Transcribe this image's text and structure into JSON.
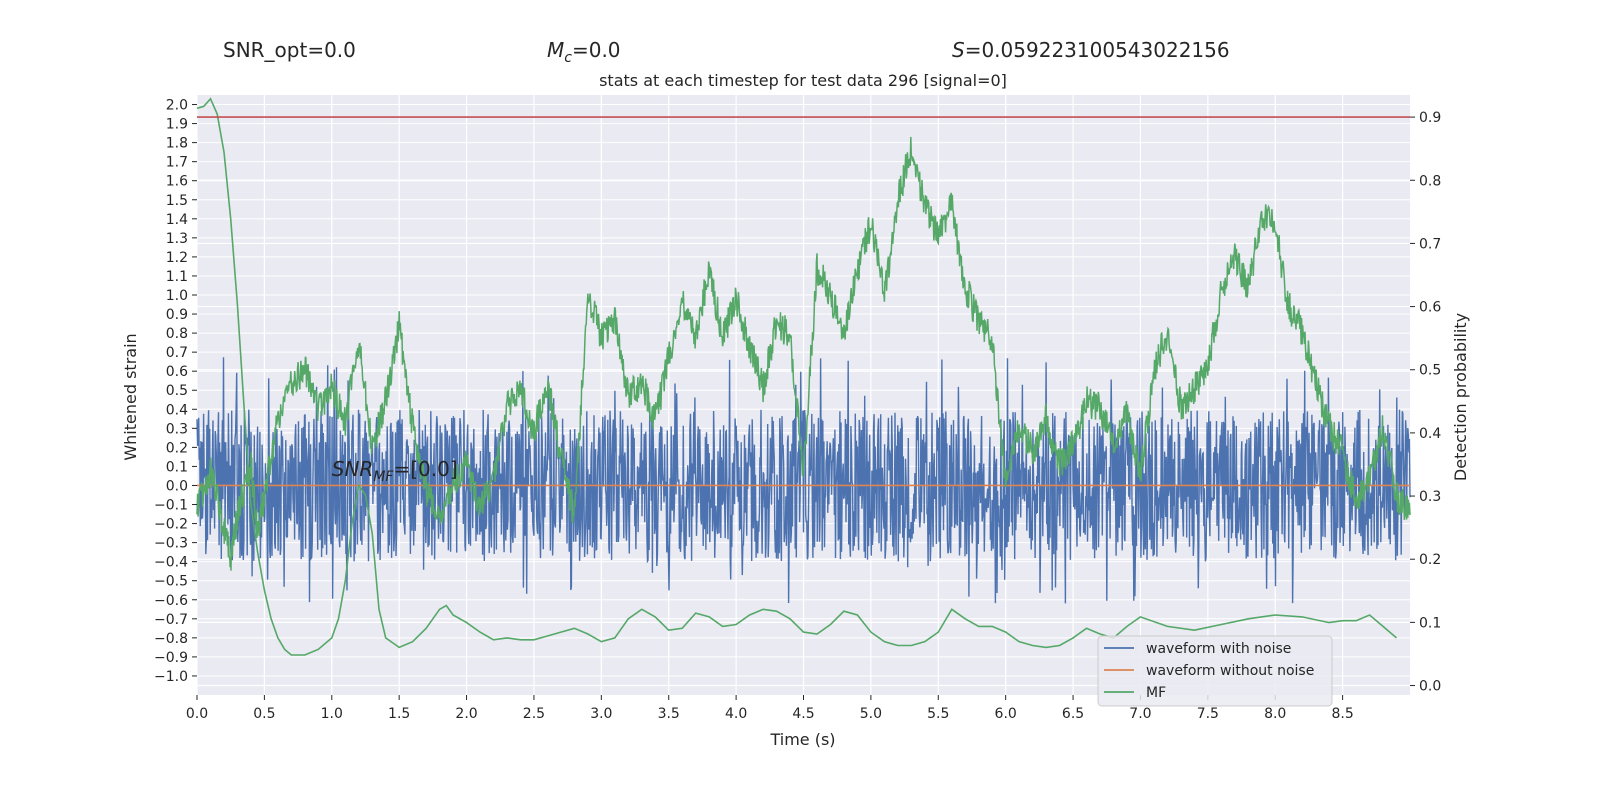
{
  "header": {
    "snr_opt": "SNR_opt=0.0",
    "mc_symbol": "M",
    "mc_sub": "c",
    "mc_value": "=0.0",
    "s_symbol": "S",
    "s_value": "=0.059223100543022156"
  },
  "chart_data": {
    "type": "line",
    "title": "stats at each timestep for test data 296 [signal=0]",
    "xlabel": "Time (s)",
    "ylabel_left": "Whitened strain",
    "ylabel_right": "Detection probability",
    "xlim": [
      0.0,
      9.0
    ],
    "ylim_left": [
      -1.1,
      2.05
    ],
    "ylim_right": [
      -0.015,
      0.935
    ],
    "x_ticks": [
      "0.0",
      "0.5",
      "1.0",
      "1.5",
      "2.0",
      "2.5",
      "3.0",
      "3.5",
      "4.0",
      "4.5",
      "5.0",
      "5.5",
      "6.0",
      "6.5",
      "7.0",
      "7.5",
      "8.0",
      "8.5"
    ],
    "y_left_ticks": [
      "−1.0",
      "−0.9",
      "−0.8",
      "−0.7",
      "−0.6",
      "−0.5",
      "−0.4",
      "−0.3",
      "−0.2",
      "−0.1",
      "0.0",
      "0.1",
      "0.2",
      "0.3",
      "0.4",
      "0.5",
      "0.6",
      "0.7",
      "0.8",
      "0.9",
      "1.0",
      "1.1",
      "1.2",
      "1.3",
      "1.4",
      "1.5",
      "1.6",
      "1.7",
      "1.8",
      "1.9",
      "2.0"
    ],
    "y_right_ticks": [
      "0.0",
      "0.1",
      "0.2",
      "0.3",
      "0.4",
      "0.5",
      "0.6",
      "0.7",
      "0.8",
      "0.9"
    ],
    "threshold": 0.9,
    "threshold_color": "#c44e52",
    "snr_mf_annotation": {
      "symbol": "SNR",
      "sub": "MF",
      "text": "=[0.0]",
      "x": 1.0,
      "y": 0.05
    },
    "grid": true,
    "background": "#eaeaf2",
    "legend_position": "lower-right",
    "series": [
      {
        "name": "waveform with noise",
        "color": "#4c72b0",
        "axis": "left",
        "description_range": [
          -0.6,
          0.65
        ]
      },
      {
        "name": "waveform without noise",
        "color": "#dd8452",
        "axis": "left",
        "x": [
          0.0,
          9.0
        ],
        "values": [
          0.0,
          0.0
        ]
      },
      {
        "name": "MF",
        "color": "#55a868",
        "axis": "left",
        "x": [
          0.0,
          0.05,
          0.1,
          0.15,
          0.2,
          0.25,
          0.3,
          0.35,
          0.4,
          0.45,
          0.5,
          0.55,
          0.6,
          0.65,
          0.7,
          0.8,
          0.9,
          1.0,
          1.05,
          1.1,
          1.15,
          1.2,
          1.25,
          1.3,
          1.35,
          1.4,
          1.5,
          1.6,
          1.7,
          1.8,
          1.85,
          1.9,
          2.0,
          2.1,
          2.2,
          2.3,
          2.4,
          2.5,
          2.6,
          2.7,
          2.8,
          2.9,
          3.0,
          3.1,
          3.2,
          3.3,
          3.4,
          3.5,
          3.6,
          3.7,
          3.8,
          3.9,
          4.0,
          4.1,
          4.2,
          4.3,
          4.4,
          4.5,
          4.6,
          4.7,
          4.8,
          4.9,
          5.0,
          5.1,
          5.2,
          5.3,
          5.4,
          5.5,
          5.6,
          5.7,
          5.8,
          5.9,
          6.0,
          6.1,
          6.2,
          6.3,
          6.4,
          6.5,
          6.6,
          6.7,
          6.8,
          6.9,
          7.0,
          7.2,
          7.4,
          7.6,
          7.8,
          8.0,
          8.2,
          8.4,
          8.5,
          8.6,
          8.7,
          8.8,
          8.9
        ],
        "values": [
          1.98,
          1.99,
          2.03,
          1.95,
          1.75,
          1.4,
          0.95,
          0.4,
          -0.1,
          -0.35,
          -0.55,
          -0.7,
          -0.8,
          -0.86,
          -0.89,
          -0.89,
          -0.86,
          -0.8,
          -0.7,
          -0.5,
          -0.2,
          0.0,
          -0.05,
          -0.25,
          -0.65,
          -0.8,
          -0.85,
          -0.82,
          -0.75,
          -0.65,
          -0.63,
          -0.68,
          -0.72,
          -0.77,
          -0.81,
          -0.8,
          -0.81,
          -0.81,
          -0.79,
          -0.77,
          -0.75,
          -0.78,
          -0.82,
          -0.8,
          -0.7,
          -0.65,
          -0.69,
          -0.76,
          -0.75,
          -0.67,
          -0.69,
          -0.74,
          -0.73,
          -0.68,
          -0.65,
          -0.66,
          -0.7,
          -0.77,
          -0.78,
          -0.73,
          -0.66,
          -0.68,
          -0.77,
          -0.82,
          -0.84,
          -0.84,
          -0.82,
          -0.77,
          -0.65,
          -0.7,
          -0.74,
          -0.74,
          -0.77,
          -0.82,
          -0.84,
          -0.85,
          -0.84,
          -0.8,
          -0.75,
          -0.78,
          -0.8,
          -0.74,
          -0.69,
          -0.74,
          -0.76,
          -0.73,
          -0.7,
          -0.68,
          -0.69,
          -0.72,
          -0.71,
          -0.71,
          -0.68,
          -0.74,
          -0.8
        ],
        "legend_only_label": "MF"
      },
      {
        "name": "Detection probability",
        "color": "#55a868",
        "axis": "right",
        "x": [
          0.0,
          0.1,
          0.2,
          0.25,
          0.3,
          0.4,
          0.45,
          0.5,
          0.6,
          0.7,
          0.8,
          0.9,
          1.0,
          1.1,
          1.2,
          1.3,
          1.4,
          1.5,
          1.6,
          1.7,
          1.8,
          1.9,
          2.0,
          2.1,
          2.2,
          2.3,
          2.4,
          2.5,
          2.6,
          2.7,
          2.8,
          2.9,
          3.0,
          3.1,
          3.2,
          3.3,
          3.4,
          3.5,
          3.6,
          3.7,
          3.8,
          3.9,
          4.0,
          4.1,
          4.2,
          4.3,
          4.4,
          4.5,
          4.6,
          4.7,
          4.8,
          4.9,
          5.0,
          5.1,
          5.2,
          5.3,
          5.4,
          5.5,
          5.6,
          5.7,
          5.8,
          5.9,
          6.0,
          6.1,
          6.2,
          6.3,
          6.4,
          6.5,
          6.6,
          6.7,
          6.8,
          6.9,
          7.0,
          7.1,
          7.2,
          7.3,
          7.4,
          7.5,
          7.6,
          7.7,
          7.8,
          7.9,
          8.0,
          8.1,
          8.2,
          8.3,
          8.4,
          8.5,
          8.6,
          8.7,
          8.8,
          8.9,
          9.0
        ],
        "values": [
          0.28,
          0.34,
          0.25,
          0.2,
          0.27,
          0.35,
          0.24,
          0.3,
          0.42,
          0.48,
          0.5,
          0.44,
          0.47,
          0.42,
          0.54,
          0.38,
          0.45,
          0.57,
          0.41,
          0.31,
          0.26,
          0.32,
          0.35,
          0.28,
          0.33,
          0.44,
          0.47,
          0.4,
          0.48,
          0.36,
          0.27,
          0.62,
          0.55,
          0.58,
          0.46,
          0.48,
          0.42,
          0.52,
          0.61,
          0.55,
          0.66,
          0.55,
          0.61,
          0.54,
          0.47,
          0.58,
          0.55,
          0.34,
          0.66,
          0.62,
          0.55,
          0.66,
          0.73,
          0.62,
          0.77,
          0.85,
          0.76,
          0.71,
          0.76,
          0.63,
          0.58,
          0.55,
          0.32,
          0.41,
          0.37,
          0.42,
          0.35,
          0.38,
          0.45,
          0.44,
          0.38,
          0.43,
          0.33,
          0.5,
          0.56,
          0.44,
          0.47,
          0.51,
          0.62,
          0.68,
          0.63,
          0.74,
          0.73,
          0.6,
          0.56,
          0.48,
          0.41,
          0.37,
          0.29,
          0.33,
          0.41,
          0.3,
          0.27
        ]
      }
    ]
  }
}
